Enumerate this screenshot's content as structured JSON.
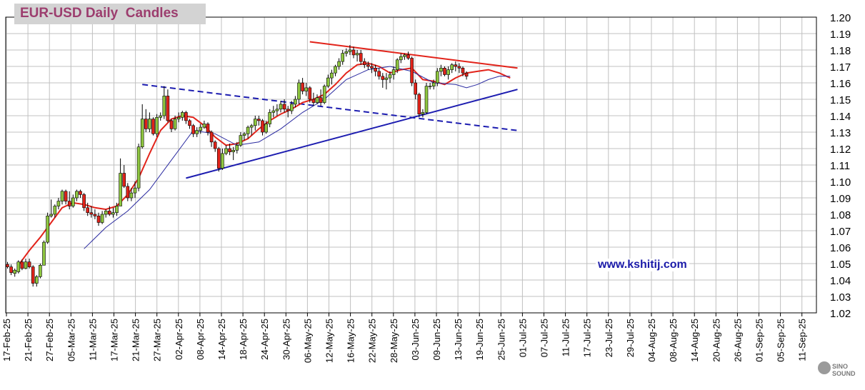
{
  "title": "EUR-USD Daily  Candles",
  "watermark": "www.kshitij.com",
  "logo_text": "SINO SOUND",
  "colors": {
    "background": "#ffffff",
    "grid": "#c0c0c0",
    "bull_candle": "#8ec63f",
    "bear_candle": "#e2231a",
    "wick": "#000000",
    "ma_fast": "#e2231a",
    "ma_slow": "#2a2aa0",
    "trendline_red": "#e2231a",
    "trendline_blue": "#1c1cb0",
    "title_text": "#9c3d6e",
    "title_box": "#d3d3d3"
  },
  "chart_data": {
    "type": "candlestick",
    "title": "EUR-USD Daily  Candles",
    "ylim": [
      1.02,
      1.2
    ],
    "y_ticks": [
      "1.02",
      "1.03",
      "1.04",
      "1.05",
      "1.06",
      "1.07",
      "1.08",
      "1.09",
      "1.10",
      "1.11",
      "1.12",
      "1.13",
      "1.14",
      "1.15",
      "1.16",
      "1.17",
      "1.18",
      "1.19",
      "1.20"
    ],
    "y_axis_position": "right",
    "grid": true,
    "x_ticks": [
      "17-Feb-25",
      "21-Feb-25",
      "27-Feb-25",
      "05-Mar-25",
      "11-Mar-25",
      "17-Mar-25",
      "21-Mar-25",
      "27-Mar-25",
      "02-Apr-25",
      "08-Apr-25",
      "14-Apr-25",
      "18-Apr-25",
      "24-Apr-25",
      "30-Apr-25",
      "06-May-25",
      "12-May-25",
      "16-May-25",
      "22-May-25",
      "28-May-25",
      "03-Jun-25",
      "09-Jun-25",
      "13-Jun-25",
      "19-Jun-25",
      "25-Jun-25",
      "01-Jul-25",
      "07-Jul-25",
      "11-Jul-25",
      "17-Jul-25",
      "23-Jul-25",
      "29-Jul-25",
      "04-Aug-25",
      "08-Aug-25",
      "14-Aug-25",
      "20-Aug-25",
      "26-Aug-25",
      "01-Sep-25",
      "05-Sep-25",
      "11-Sep-25"
    ],
    "candles": [
      [
        1.0495,
        1.051,
        1.047,
        1.048
      ],
      [
        1.048,
        1.0495,
        1.043,
        1.0445
      ],
      [
        1.044,
        1.047,
        1.042,
        1.046
      ],
      [
        1.045,
        1.052,
        1.044,
        1.051
      ],
      [
        1.051,
        1.0525,
        1.046,
        1.047
      ],
      [
        1.047,
        1.053,
        1.0465,
        1.051
      ],
      [
        1.051,
        1.053,
        1.047,
        1.048
      ],
      [
        1.048,
        1.049,
        1.036,
        1.038
      ],
      [
        1.038,
        1.043,
        1.036,
        1.042
      ],
      [
        1.042,
        1.05,
        1.041,
        1.049
      ],
      [
        1.049,
        1.064,
        1.049,
        1.063
      ],
      [
        1.063,
        1.081,
        1.062,
        1.079
      ],
      [
        1.079,
        1.089,
        1.078,
        1.08
      ],
      [
        1.08,
        1.086,
        1.078,
        1.085
      ],
      [
        1.085,
        1.09,
        1.083,
        1.088
      ],
      [
        1.088,
        1.095,
        1.086,
        1.094
      ],
      [
        1.094,
        1.095,
        1.086,
        1.088
      ],
      [
        1.088,
        1.094,
        1.083,
        1.085
      ],
      [
        1.085,
        1.092,
        1.084,
        1.09
      ],
      [
        1.09,
        1.095,
        1.088,
        1.094
      ],
      [
        1.094,
        1.095,
        1.09,
        1.092
      ],
      [
        1.092,
        1.093,
        1.082,
        1.084
      ],
      [
        1.084,
        1.087,
        1.079,
        1.081
      ],
      [
        1.081,
        1.085,
        1.078,
        1.08
      ],
      [
        1.08,
        1.083,
        1.077,
        1.079
      ],
      [
        1.079,
        1.081,
        1.073,
        1.075
      ],
      [
        1.075,
        1.082,
        1.074,
        1.08
      ],
      [
        1.08,
        1.083,
        1.078,
        1.082
      ],
      [
        1.082,
        1.085,
        1.079,
        1.08
      ],
      [
        1.08,
        1.084,
        1.078,
        1.081
      ],
      [
        1.081,
        1.087,
        1.079,
        1.085
      ],
      [
        1.085,
        1.114,
        1.085,
        1.105
      ],
      [
        1.105,
        1.11,
        1.096,
        1.097
      ],
      [
        1.097,
        1.099,
        1.088,
        1.09
      ],
      [
        1.09,
        1.096,
        1.088,
        1.093
      ],
      [
        1.093,
        1.1,
        1.09,
        1.096
      ],
      [
        1.096,
        1.123,
        1.094,
        1.121
      ],
      [
        1.121,
        1.147,
        1.12,
        1.138
      ],
      [
        1.138,
        1.144,
        1.13,
        1.132
      ],
      [
        1.132,
        1.142,
        1.13,
        1.138
      ],
      [
        1.138,
        1.139,
        1.128,
        1.129
      ],
      [
        1.129,
        1.141,
        1.127,
        1.139
      ],
      [
        1.139,
        1.142,
        1.137,
        1.14
      ],
      [
        1.14,
        1.158,
        1.138,
        1.152
      ],
      [
        1.152,
        1.156,
        1.136,
        1.137
      ],
      [
        1.137,
        1.138,
        1.13,
        1.132
      ],
      [
        1.132,
        1.14,
        1.131,
        1.138
      ],
      [
        1.138,
        1.142,
        1.136,
        1.139
      ],
      [
        1.139,
        1.143,
        1.137,
        1.142
      ],
      [
        1.142,
        1.143,
        1.135,
        1.137
      ],
      [
        1.137,
        1.138,
        1.132,
        1.134
      ],
      [
        1.134,
        1.135,
        1.127,
        1.129
      ],
      [
        1.129,
        1.133,
        1.127,
        1.131
      ],
      [
        1.131,
        1.135,
        1.129,
        1.133
      ],
      [
        1.133,
        1.137,
        1.132,
        1.135
      ],
      [
        1.135,
        1.136,
        1.128,
        1.13
      ],
      [
        1.13,
        1.131,
        1.121,
        1.124
      ],
      [
        1.124,
        1.125,
        1.118,
        1.12
      ],
      [
        1.12,
        1.121,
        1.106,
        1.108
      ],
      [
        1.108,
        1.12,
        1.107,
        1.117
      ],
      [
        1.117,
        1.122,
        1.116,
        1.12
      ],
      [
        1.12,
        1.123,
        1.116,
        1.118
      ],
      [
        1.118,
        1.121,
        1.113,
        1.119
      ],
      [
        1.119,
        1.124,
        1.117,
        1.122
      ],
      [
        1.122,
        1.13,
        1.121,
        1.128
      ],
      [
        1.128,
        1.13,
        1.125,
        1.129
      ],
      [
        1.129,
        1.134,
        1.126,
        1.133
      ],
      [
        1.133,
        1.135,
        1.128,
        1.134
      ],
      [
        1.134,
        1.14,
        1.131,
        1.138
      ],
      [
        1.138,
        1.14,
        1.134,
        1.137
      ],
      [
        1.137,
        1.138,
        1.128,
        1.13
      ],
      [
        1.13,
        1.137,
        1.129,
        1.135
      ],
      [
        1.135,
        1.144,
        1.133,
        1.142
      ],
      [
        1.142,
        1.146,
        1.139,
        1.143
      ],
      [
        1.143,
        1.147,
        1.14,
        1.144
      ],
      [
        1.144,
        1.149,
        1.142,
        1.147
      ],
      [
        1.147,
        1.15,
        1.142,
        1.144
      ],
      [
        1.144,
        1.146,
        1.139,
        1.143
      ],
      [
        1.143,
        1.149,
        1.141,
        1.147
      ],
      [
        1.147,
        1.152,
        1.145,
        1.15
      ],
      [
        1.15,
        1.162,
        1.147,
        1.16
      ],
      [
        1.16,
        1.163,
        1.153,
        1.155
      ],
      [
        1.155,
        1.16,
        1.152,
        1.157
      ],
      [
        1.157,
        1.158,
        1.148,
        1.15
      ],
      [
        1.15,
        1.154,
        1.146,
        1.148
      ],
      [
        1.148,
        1.153,
        1.147,
        1.151
      ],
      [
        1.151,
        1.156,
        1.146,
        1.148
      ],
      [
        1.148,
        1.159,
        1.147,
        1.158
      ],
      [
        1.158,
        1.165,
        1.157,
        1.163
      ],
      [
        1.163,
        1.168,
        1.159,
        1.166
      ],
      [
        1.166,
        1.171,
        1.164,
        1.17
      ],
      [
        1.17,
        1.175,
        1.168,
        1.173
      ],
      [
        1.173,
        1.18,
        1.171,
        1.178
      ],
      [
        1.178,
        1.181,
        1.176,
        1.179
      ],
      [
        1.179,
        1.183,
        1.177,
        1.18
      ],
      [
        1.18,
        1.182,
        1.175,
        1.177
      ],
      [
        1.177,
        1.18,
        1.173,
        1.178
      ],
      [
        1.178,
        1.18,
        1.171,
        1.173
      ],
      [
        1.173,
        1.175,
        1.169,
        1.171
      ],
      [
        1.171,
        1.173,
        1.168,
        1.17
      ],
      [
        1.17,
        1.172,
        1.166,
        1.169
      ],
      [
        1.169,
        1.171,
        1.164,
        1.167
      ],
      [
        1.167,
        1.169,
        1.162,
        1.164
      ],
      [
        1.164,
        1.166,
        1.157,
        1.162
      ],
      [
        1.162,
        1.166,
        1.156,
        1.163
      ],
      [
        1.163,
        1.167,
        1.16,
        1.165
      ],
      [
        1.165,
        1.17,
        1.162,
        1.168
      ],
      [
        1.168,
        1.175,
        1.166,
        1.174
      ],
      [
        1.174,
        1.178,
        1.172,
        1.176
      ],
      [
        1.176,
        1.178,
        1.174,
        1.177
      ],
      [
        1.177,
        1.179,
        1.174,
        1.175
      ],
      [
        1.175,
        1.176,
        1.158,
        1.16
      ],
      [
        1.16,
        1.162,
        1.15,
        1.153
      ],
      [
        1.153,
        1.154,
        1.139,
        1.141
      ],
      [
        1.141,
        1.144,
        1.139,
        1.142
      ],
      [
        1.142,
        1.16,
        1.141,
        1.158
      ],
      [
        1.158,
        1.16,
        1.156,
        1.158
      ],
      [
        1.158,
        1.162,
        1.156,
        1.16
      ],
      [
        1.16,
        1.169,
        1.158,
        1.167
      ],
      [
        1.167,
        1.171,
        1.164,
        1.169
      ],
      [
        1.169,
        1.17,
        1.164,
        1.165
      ],
      [
        1.165,
        1.17,
        1.162,
        1.168
      ],
      [
        1.168,
        1.172,
        1.166,
        1.171
      ],
      [
        1.171,
        1.173,
        1.167,
        1.17
      ],
      [
        1.17,
        1.172,
        1.166,
        1.169
      ],
      [
        1.169,
        1.17,
        1.164,
        1.166
      ],
      [
        1.166,
        1.167,
        1.162,
        1.164
      ]
    ],
    "moving_averages": [
      {
        "color": "#e2231a",
        "points": [
          [
            3,
            1.049
          ],
          [
            6,
            1.058
          ],
          [
            9,
            1.066
          ],
          [
            12,
            1.075
          ],
          [
            15,
            1.084
          ],
          [
            18,
            1.087
          ],
          [
            21,
            1.086
          ],
          [
            24,
            1.084
          ],
          [
            27,
            1.083
          ],
          [
            30,
            1.085
          ],
          [
            33,
            1.092
          ],
          [
            36,
            1.102
          ],
          [
            39,
            1.117
          ],
          [
            42,
            1.131
          ],
          [
            45,
            1.138
          ],
          [
            48,
            1.14
          ],
          [
            51,
            1.139
          ],
          [
            54,
            1.134
          ],
          [
            57,
            1.127
          ],
          [
            60,
            1.122
          ],
          [
            63,
            1.123
          ],
          [
            66,
            1.126
          ],
          [
            69,
            1.132
          ],
          [
            72,
            1.137
          ],
          [
            75,
            1.141
          ],
          [
            78,
            1.144
          ],
          [
            81,
            1.148
          ],
          [
            84,
            1.15
          ],
          [
            87,
            1.153
          ],
          [
            90,
            1.159
          ],
          [
            93,
            1.166
          ],
          [
            96,
            1.171
          ],
          [
            99,
            1.172
          ],
          [
            102,
            1.17
          ],
          [
            105,
            1.166
          ],
          [
            108,
            1.168
          ],
          [
            111,
            1.169
          ],
          [
            114,
            1.162
          ],
          [
            117,
            1.161
          ],
          [
            120,
            1.159
          ],
          [
            123,
            1.163
          ],
          [
            126,
            1.166
          ],
          [
            129,
            1.167
          ],
          [
            132,
            1.168
          ],
          [
            135,
            1.166
          ],
          [
            138,
            1.163
          ]
        ]
      },
      {
        "color": "#2a2aa0",
        "points": [
          [
            21,
            1.059
          ],
          [
            27,
            1.072
          ],
          [
            33,
            1.082
          ],
          [
            39,
            1.095
          ],
          [
            45,
            1.113
          ],
          [
            51,
            1.131
          ],
          [
            57,
            1.129
          ],
          [
            63,
            1.122
          ],
          [
            69,
            1.124
          ],
          [
            75,
            1.132
          ],
          [
            81,
            1.142
          ],
          [
            87,
            1.15
          ],
          [
            93,
            1.162
          ],
          [
            99,
            1.168
          ],
          [
            105,
            1.17
          ],
          [
            111,
            1.167
          ],
          [
            117,
            1.16
          ],
          [
            123,
            1.159
          ],
          [
            126,
            1.157
          ],
          [
            129,
            1.159
          ],
          [
            132,
            1.162
          ],
          [
            135,
            1.164
          ],
          [
            138,
            1.164
          ]
        ]
      }
    ],
    "trendlines": [
      {
        "color": "#e2231a",
        "dashed": false,
        "from": [
          83,
          1.185
        ],
        "to": [
          140,
          1.169
        ]
      },
      {
        "color": "#1c1cb0",
        "dashed": true,
        "from": [
          37,
          1.159
        ],
        "to": [
          140,
          1.131
        ]
      },
      {
        "color": "#1c1cb0",
        "dashed": false,
        "from": [
          49,
          1.102
        ],
        "to": [
          140,
          1.156
        ]
      }
    ]
  }
}
